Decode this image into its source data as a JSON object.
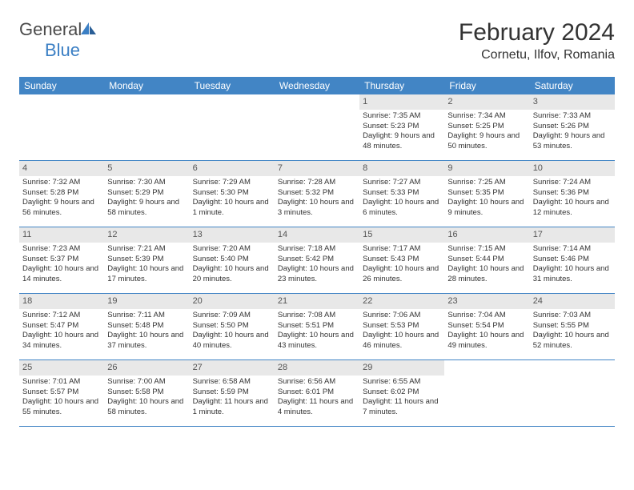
{
  "brand": {
    "left": "General",
    "right": "Blue"
  },
  "title": "February 2024",
  "location": "Cornetu, Ilfov, Romania",
  "colors": {
    "header_bg": "#4285c5",
    "header_text": "#ffffff",
    "daynum_bg": "#e8e8e8",
    "border": "#4285c5",
    "logo_gray": "#4a4a4a",
    "logo_blue": "#3b7fc4"
  },
  "day_labels": [
    "Sunday",
    "Monday",
    "Tuesday",
    "Wednesday",
    "Thursday",
    "Friday",
    "Saturday"
  ],
  "weeks": [
    [
      {
        "n": "",
        "sr": "",
        "ss": "",
        "dl": ""
      },
      {
        "n": "",
        "sr": "",
        "ss": "",
        "dl": ""
      },
      {
        "n": "",
        "sr": "",
        "ss": "",
        "dl": ""
      },
      {
        "n": "",
        "sr": "",
        "ss": "",
        "dl": ""
      },
      {
        "n": "1",
        "sr": "Sunrise: 7:35 AM",
        "ss": "Sunset: 5:23 PM",
        "dl": "Daylight: 9 hours and 48 minutes."
      },
      {
        "n": "2",
        "sr": "Sunrise: 7:34 AM",
        "ss": "Sunset: 5:25 PM",
        "dl": "Daylight: 9 hours and 50 minutes."
      },
      {
        "n": "3",
        "sr": "Sunrise: 7:33 AM",
        "ss": "Sunset: 5:26 PM",
        "dl": "Daylight: 9 hours and 53 minutes."
      }
    ],
    [
      {
        "n": "4",
        "sr": "Sunrise: 7:32 AM",
        "ss": "Sunset: 5:28 PM",
        "dl": "Daylight: 9 hours and 56 minutes."
      },
      {
        "n": "5",
        "sr": "Sunrise: 7:30 AM",
        "ss": "Sunset: 5:29 PM",
        "dl": "Daylight: 9 hours and 58 minutes."
      },
      {
        "n": "6",
        "sr": "Sunrise: 7:29 AM",
        "ss": "Sunset: 5:30 PM",
        "dl": "Daylight: 10 hours and 1 minute."
      },
      {
        "n": "7",
        "sr": "Sunrise: 7:28 AM",
        "ss": "Sunset: 5:32 PM",
        "dl": "Daylight: 10 hours and 3 minutes."
      },
      {
        "n": "8",
        "sr": "Sunrise: 7:27 AM",
        "ss": "Sunset: 5:33 PM",
        "dl": "Daylight: 10 hours and 6 minutes."
      },
      {
        "n": "9",
        "sr": "Sunrise: 7:25 AM",
        "ss": "Sunset: 5:35 PM",
        "dl": "Daylight: 10 hours and 9 minutes."
      },
      {
        "n": "10",
        "sr": "Sunrise: 7:24 AM",
        "ss": "Sunset: 5:36 PM",
        "dl": "Daylight: 10 hours and 12 minutes."
      }
    ],
    [
      {
        "n": "11",
        "sr": "Sunrise: 7:23 AM",
        "ss": "Sunset: 5:37 PM",
        "dl": "Daylight: 10 hours and 14 minutes."
      },
      {
        "n": "12",
        "sr": "Sunrise: 7:21 AM",
        "ss": "Sunset: 5:39 PM",
        "dl": "Daylight: 10 hours and 17 minutes."
      },
      {
        "n": "13",
        "sr": "Sunrise: 7:20 AM",
        "ss": "Sunset: 5:40 PM",
        "dl": "Daylight: 10 hours and 20 minutes."
      },
      {
        "n": "14",
        "sr": "Sunrise: 7:18 AM",
        "ss": "Sunset: 5:42 PM",
        "dl": "Daylight: 10 hours and 23 minutes."
      },
      {
        "n": "15",
        "sr": "Sunrise: 7:17 AM",
        "ss": "Sunset: 5:43 PM",
        "dl": "Daylight: 10 hours and 26 minutes."
      },
      {
        "n": "16",
        "sr": "Sunrise: 7:15 AM",
        "ss": "Sunset: 5:44 PM",
        "dl": "Daylight: 10 hours and 28 minutes."
      },
      {
        "n": "17",
        "sr": "Sunrise: 7:14 AM",
        "ss": "Sunset: 5:46 PM",
        "dl": "Daylight: 10 hours and 31 minutes."
      }
    ],
    [
      {
        "n": "18",
        "sr": "Sunrise: 7:12 AM",
        "ss": "Sunset: 5:47 PM",
        "dl": "Daylight: 10 hours and 34 minutes."
      },
      {
        "n": "19",
        "sr": "Sunrise: 7:11 AM",
        "ss": "Sunset: 5:48 PM",
        "dl": "Daylight: 10 hours and 37 minutes."
      },
      {
        "n": "20",
        "sr": "Sunrise: 7:09 AM",
        "ss": "Sunset: 5:50 PM",
        "dl": "Daylight: 10 hours and 40 minutes."
      },
      {
        "n": "21",
        "sr": "Sunrise: 7:08 AM",
        "ss": "Sunset: 5:51 PM",
        "dl": "Daylight: 10 hours and 43 minutes."
      },
      {
        "n": "22",
        "sr": "Sunrise: 7:06 AM",
        "ss": "Sunset: 5:53 PM",
        "dl": "Daylight: 10 hours and 46 minutes."
      },
      {
        "n": "23",
        "sr": "Sunrise: 7:04 AM",
        "ss": "Sunset: 5:54 PM",
        "dl": "Daylight: 10 hours and 49 minutes."
      },
      {
        "n": "24",
        "sr": "Sunrise: 7:03 AM",
        "ss": "Sunset: 5:55 PM",
        "dl": "Daylight: 10 hours and 52 minutes."
      }
    ],
    [
      {
        "n": "25",
        "sr": "Sunrise: 7:01 AM",
        "ss": "Sunset: 5:57 PM",
        "dl": "Daylight: 10 hours and 55 minutes."
      },
      {
        "n": "26",
        "sr": "Sunrise: 7:00 AM",
        "ss": "Sunset: 5:58 PM",
        "dl": "Daylight: 10 hours and 58 minutes."
      },
      {
        "n": "27",
        "sr": "Sunrise: 6:58 AM",
        "ss": "Sunset: 5:59 PM",
        "dl": "Daylight: 11 hours and 1 minute."
      },
      {
        "n": "28",
        "sr": "Sunrise: 6:56 AM",
        "ss": "Sunset: 6:01 PM",
        "dl": "Daylight: 11 hours and 4 minutes."
      },
      {
        "n": "29",
        "sr": "Sunrise: 6:55 AM",
        "ss": "Sunset: 6:02 PM",
        "dl": "Daylight: 11 hours and 7 minutes."
      },
      {
        "n": "",
        "sr": "",
        "ss": "",
        "dl": ""
      },
      {
        "n": "",
        "sr": "",
        "ss": "",
        "dl": ""
      }
    ]
  ]
}
